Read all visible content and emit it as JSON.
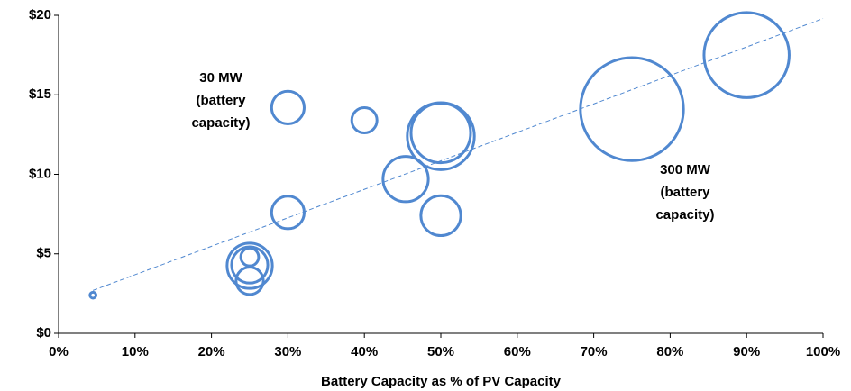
{
  "chart_data": {
    "type": "bubble",
    "x_label": "Battery Capacity as % of PV Capacity",
    "color": "#5088d0",
    "x": [
      4.5,
      30,
      40,
      50,
      50,
      45.4,
      30,
      50,
      25,
      25,
      25,
      25,
      75,
      90
    ],
    "y": [
      2.4,
      14.2,
      13.4,
      12.6,
      12.4,
      9.7,
      7.6,
      7.4,
      4.25,
      4.3,
      4.8,
      3.3,
      14.1,
      17.5
    ],
    "sizes": [
      1,
      30,
      18,
      100,
      127,
      58,
      30,
      45,
      58,
      37,
      9,
      21,
      300,
      205
    ],
    "trendline": {
      "x": [
        4.5,
        100
      ],
      "y": [
        2.7,
        19.8
      ]
    },
    "annotations": [
      {
        "lines": [
          "30 MW",
          "(battery",
          "capacity)"
        ]
      },
      {
        "lines": [
          "300 MW",
          "(battery",
          "capacity)"
        ]
      }
    ],
    "xlim": [
      0,
      100
    ],
    "ylim": [
      0,
      20
    ],
    "xticks": [
      {
        "value": 0,
        "label": "0%"
      },
      {
        "value": 10,
        "label": "10%"
      },
      {
        "value": 20,
        "label": "20%"
      },
      {
        "value": 30,
        "label": "30%"
      },
      {
        "value": 40,
        "label": "40%"
      },
      {
        "value": 50,
        "label": "50%"
      },
      {
        "value": 60,
        "label": "60%"
      },
      {
        "value": 70,
        "label": "70%"
      },
      {
        "value": 80,
        "label": "80%"
      },
      {
        "value": 90,
        "label": "90%"
      },
      {
        "value": 100,
        "label": "100%"
      }
    ],
    "yticks": [
      {
        "value": 0,
        "label": "$0"
      },
      {
        "value": 5,
        "label": "$5"
      },
      {
        "value": 10,
        "label": "$10"
      },
      {
        "value": 15,
        "label": "$15"
      },
      {
        "value": 20,
        "label": "$20"
      }
    ]
  }
}
